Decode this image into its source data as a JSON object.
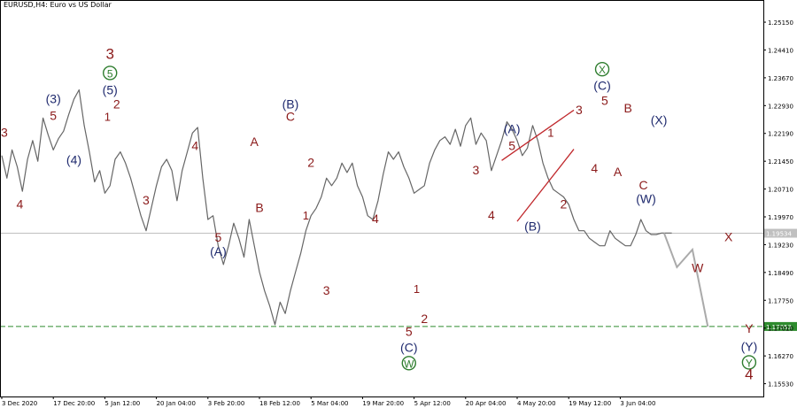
{
  "header": {
    "symbol": "EURUSD",
    "timeframe": "H4",
    "description": "Euro vs US Dollar"
  },
  "chart_data": {
    "type": "line",
    "title": "EURUSD,H4:  Euro vs US Dollar",
    "xlabel": "",
    "ylabel": "",
    "ylim": [
      1.1519,
      1.2574
    ],
    "grid": false,
    "y_ticks": [
      "1.25150",
      "1.24410",
      "1.23670",
      "1.22930",
      "1.22190",
      "1.21450",
      "1.20710",
      "1.19970",
      "1.19230",
      "1.18490",
      "1.17750",
      "1.17010",
      "1.16270",
      "1.15530"
    ],
    "x_ticks": [
      "3 Dec 2020",
      "17 Dec 20:00",
      "5 Jan 12:00",
      "20 Jan 04:00",
      "3 Feb 20:00",
      "18 Feb 12:00",
      "5 Mar 04:00",
      "19 Mar 20:00",
      "5 Apr 12:00",
      "20 Apr 04:00",
      "4 May 20:00",
      "19 May 12:00",
      "3 Jun 04:00"
    ],
    "x_index": [
      0,
      1,
      2,
      3,
      4,
      5,
      6,
      7,
      8,
      9,
      10,
      11,
      12,
      13,
      14,
      15,
      16,
      17,
      18,
      19,
      20,
      21,
      22,
      23,
      24,
      25,
      26,
      27,
      28,
      29,
      30,
      31,
      32,
      33,
      34,
      35,
      36,
      37,
      38,
      39,
      40,
      41,
      42,
      43,
      44,
      45,
      46,
      47,
      48,
      49,
      50,
      51,
      52,
      53,
      54,
      55,
      56,
      57,
      58,
      59,
      60,
      61,
      62,
      63,
      64,
      65,
      66,
      67,
      68,
      69,
      70,
      71,
      72,
      73,
      74,
      75,
      76,
      77,
      78,
      79,
      80,
      81,
      82,
      83,
      84,
      85,
      86,
      87,
      88,
      89,
      90,
      91,
      92,
      93,
      94,
      95,
      96,
      97,
      98,
      99,
      100,
      101,
      102,
      103,
      104,
      105,
      106,
      107,
      108,
      109,
      110,
      111,
      112,
      113,
      114,
      115,
      116,
      117,
      118,
      119,
      120,
      121,
      122,
      123,
      124,
      125,
      126,
      127,
      128,
      129,
      130
    ],
    "series": [
      {
        "name": "EURUSD H4",
        "color": "#666666",
        "values": [
          1.216,
          1.21,
          1.2175,
          1.213,
          1.2065,
          1.215,
          1.22,
          1.2145,
          1.226,
          1.2215,
          1.2175,
          1.2205,
          1.2225,
          1.227,
          1.231,
          1.2335,
          1.224,
          1.217,
          1.209,
          1.212,
          1.206,
          1.208,
          1.215,
          1.217,
          1.214,
          1.21,
          1.205,
          1.2,
          1.196,
          1.202,
          1.208,
          1.213,
          1.215,
          1.212,
          1.204,
          1.212,
          1.217,
          1.222,
          1.2235,
          1.21,
          1.199,
          1.2,
          1.192,
          1.187,
          1.192,
          1.198,
          1.194,
          1.189,
          1.199,
          1.192,
          1.185,
          1.18,
          1.176,
          1.171,
          1.177,
          1.174,
          1.18,
          1.185,
          1.19,
          1.196,
          1.2,
          1.202,
          1.205,
          1.21,
          1.208,
          1.21,
          1.214,
          1.2115,
          1.214,
          1.208,
          1.205,
          1.2,
          1.199,
          1.204,
          1.211,
          1.217,
          1.215,
          1.217,
          1.213,
          1.21,
          1.206,
          1.207,
          1.208,
          1.214,
          1.2175,
          1.22,
          1.221,
          1.219,
          1.223,
          1.2185,
          1.224,
          1.226,
          1.219,
          1.222,
          1.22,
          1.212,
          1.216,
          1.22,
          1.225,
          1.223,
          1.22,
          1.216,
          1.218,
          1.224,
          1.22,
          1.214,
          1.21,
          1.207,
          1.206,
          1.205,
          1.203,
          1.199,
          1.196,
          1.196,
          1.194,
          1.193,
          1.192,
          1.192,
          1.196,
          1.194,
          1.193,
          1.192,
          1.192,
          1.195,
          1.199,
          1.196,
          1.195,
          1.195,
          1.1954,
          1.1954,
          1.1954
        ]
      },
      {
        "name": "projection",
        "color": "#aaaaaa",
        "x": [
          128.5,
          131,
          134,
          137
        ],
        "values": [
          1.1954,
          1.1863,
          1.191,
          1.1705
        ]
      }
    ],
    "levels": [
      {
        "value": "1.19534",
        "color": "#c0c0c0",
        "style": "solid"
      },
      {
        "value": "1.17053",
        "color": "#2e8b2e",
        "style": "dashed"
      }
    ],
    "trendlines": [
      {
        "color": "#c0282c",
        "from": [
          97,
          1.2147
        ],
        "to": [
          111,
          1.2281
        ]
      },
      {
        "color": "#c0282c",
        "from": [
          100,
          1.1985
        ],
        "to": [
          111,
          1.2177
        ]
      }
    ],
    "annotations": [
      {
        "text": "3",
        "color": "#8b1a1a",
        "x": 0.5,
        "y": 1.221,
        "size": "n"
      },
      {
        "text": "4",
        "color": "#8b1a1a",
        "x": 3.5,
        "y": 1.202,
        "size": "n"
      },
      {
        "text": "(3)",
        "color": "#1f2a6e",
        "x": 10,
        "y": 1.23,
        "size": "n"
      },
      {
        "text": "5",
        "color": "#8b1a1a",
        "x": 10,
        "y": 1.2255,
        "size": "n"
      },
      {
        "text": "(4)",
        "color": "#1f2a6e",
        "x": 14,
        "y": 1.2137,
        "size": "n"
      },
      {
        "text": "3",
        "color": "#8b1a1a",
        "x": 21,
        "y": 1.2417,
        "size": "b"
      },
      {
        "text": "5",
        "color": "#2e7d2e",
        "x": 21,
        "y": 1.2368,
        "size": "n",
        "circle": true
      },
      {
        "text": "(5)",
        "color": "#1f2a6e",
        "x": 21,
        "y": 1.2323,
        "size": "n"
      },
      {
        "text": "2",
        "color": "#8b1a1a",
        "x": 22.3,
        "y": 1.2285,
        "size": "n"
      },
      {
        "text": "1",
        "color": "#8b1a1a",
        "x": 20.5,
        "y": 1.2252,
        "size": "s"
      },
      {
        "text": "3",
        "color": "#8b1a1a",
        "x": 28,
        "y": 1.203,
        "size": "n"
      },
      {
        "text": "4",
        "color": "#8b1a1a",
        "x": 37.5,
        "y": 1.2175,
        "size": "n"
      },
      {
        "text": "5",
        "color": "#8b1a1a",
        "x": 42,
        "y": 1.1931,
        "size": "n"
      },
      {
        "text": "(A)",
        "color": "#1f2a6e",
        "x": 42,
        "y": 1.1893,
        "size": "n"
      },
      {
        "text": "A",
        "color": "#8b1a1a",
        "x": 49,
        "y": 1.2185,
        "size": "n"
      },
      {
        "text": "B",
        "color": "#8b1a1a",
        "x": 50,
        "y": 1.201,
        "size": "n"
      },
      {
        "text": "(B)",
        "color": "#1f2a6e",
        "x": 56,
        "y": 1.2285,
        "size": "n"
      },
      {
        "text": "C",
        "color": "#8b1a1a",
        "x": 56,
        "y": 1.2252,
        "size": "n"
      },
      {
        "text": "2",
        "color": "#8b1a1a",
        "x": 60,
        "y": 1.213,
        "size": "n"
      },
      {
        "text": "1",
        "color": "#8b1a1a",
        "x": 59,
        "y": 1.199,
        "size": "s"
      },
      {
        "text": "4",
        "color": "#8b1a1a",
        "x": 72.5,
        "y": 1.198,
        "size": "n"
      },
      {
        "text": "3",
        "color": "#8b1a1a",
        "x": 63,
        "y": 1.179,
        "size": "n"
      },
      {
        "text": "1",
        "color": "#8b1a1a",
        "x": 80.5,
        "y": 1.1795,
        "size": "s"
      },
      {
        "text": "5",
        "color": "#8b1a1a",
        "x": 79,
        "y": 1.168,
        "size": "n"
      },
      {
        "text": "2",
        "color": "#8b1a1a",
        "x": 82,
        "y": 1.1715,
        "size": "n"
      },
      {
        "text": "(C)",
        "color": "#1f2a6e",
        "x": 79,
        "y": 1.1638,
        "size": "n"
      },
      {
        "text": "W",
        "color": "#2e7d2e",
        "x": 79,
        "y": 1.1596,
        "size": "n",
        "circle": true
      },
      {
        "text": "3",
        "color": "#8b1a1a",
        "x": 92,
        "y": 1.211,
        "size": "n"
      },
      {
        "text": "4",
        "color": "#8b1a1a",
        "x": 95,
        "y": 1.199,
        "size": "n"
      },
      {
        "text": "(A)",
        "color": "#1f2a6e",
        "x": 99,
        "y": 1.222,
        "size": "n"
      },
      {
        "text": "5",
        "color": "#8b1a1a",
        "x": 99,
        "y": 1.2175,
        "size": "n"
      },
      {
        "text": "(B)",
        "color": "#1f2a6e",
        "x": 103,
        "y": 1.196,
        "size": "n"
      },
      {
        "text": "1",
        "color": "#8b1a1a",
        "x": 106.5,
        "y": 1.221,
        "size": "s"
      },
      {
        "text": "2",
        "color": "#8b1a1a",
        "x": 109,
        "y": 1.202,
        "size": "n"
      },
      {
        "text": "3",
        "color": "#8b1a1a",
        "x": 112,
        "y": 1.227,
        "size": "n"
      },
      {
        "text": "4",
        "color": "#8b1a1a",
        "x": 115,
        "y": 1.2115,
        "size": "n"
      },
      {
        "text": "5",
        "color": "#8b1a1a",
        "x": 117,
        "y": 1.2295,
        "size": "n"
      },
      {
        "text": "(C)",
        "color": "#1f2a6e",
        "x": 116.5,
        "y": 1.2335,
        "size": "n"
      },
      {
        "text": "X",
        "color": "#2e7d2e",
        "x": 116.5,
        "y": 1.2378,
        "size": "n",
        "circle": true
      },
      {
        "text": "A",
        "color": "#8b1a1a",
        "x": 119.5,
        "y": 1.2105,
        "size": "n"
      },
      {
        "text": "B",
        "color": "#8b1a1a",
        "x": 121.5,
        "y": 1.2275,
        "size": "n"
      },
      {
        "text": "(X)",
        "color": "#1f2a6e",
        "x": 127.5,
        "y": 1.2243,
        "size": "n"
      },
      {
        "text": "C",
        "color": "#8b1a1a",
        "x": 124.5,
        "y": 1.207,
        "size": "n"
      },
      {
        "text": "(W)",
        "color": "#1f2a6e",
        "x": 125,
        "y": 1.2033,
        "size": "n"
      },
      {
        "text": "X",
        "color": "#8b1a1a",
        "x": 141,
        "y": 1.1932,
        "size": "n"
      },
      {
        "text": "W",
        "color": "#8b1a1a",
        "x": 135,
        "y": 1.185,
        "size": "n"
      },
      {
        "text": "Y",
        "color": "#8b1a1a",
        "x": 145,
        "y": 1.1688,
        "size": "n"
      },
      {
        "text": "(Y)",
        "color": "#1f2a6e",
        "x": 145,
        "y": 1.164,
        "size": "n"
      },
      {
        "text": "Y",
        "color": "#2e7d2e",
        "x": 145,
        "y": 1.1598,
        "size": "n",
        "circle": true
      },
      {
        "text": "4",
        "color": "#8b1a1a",
        "x": 145,
        "y": 1.1565,
        "size": "b"
      }
    ]
  }
}
